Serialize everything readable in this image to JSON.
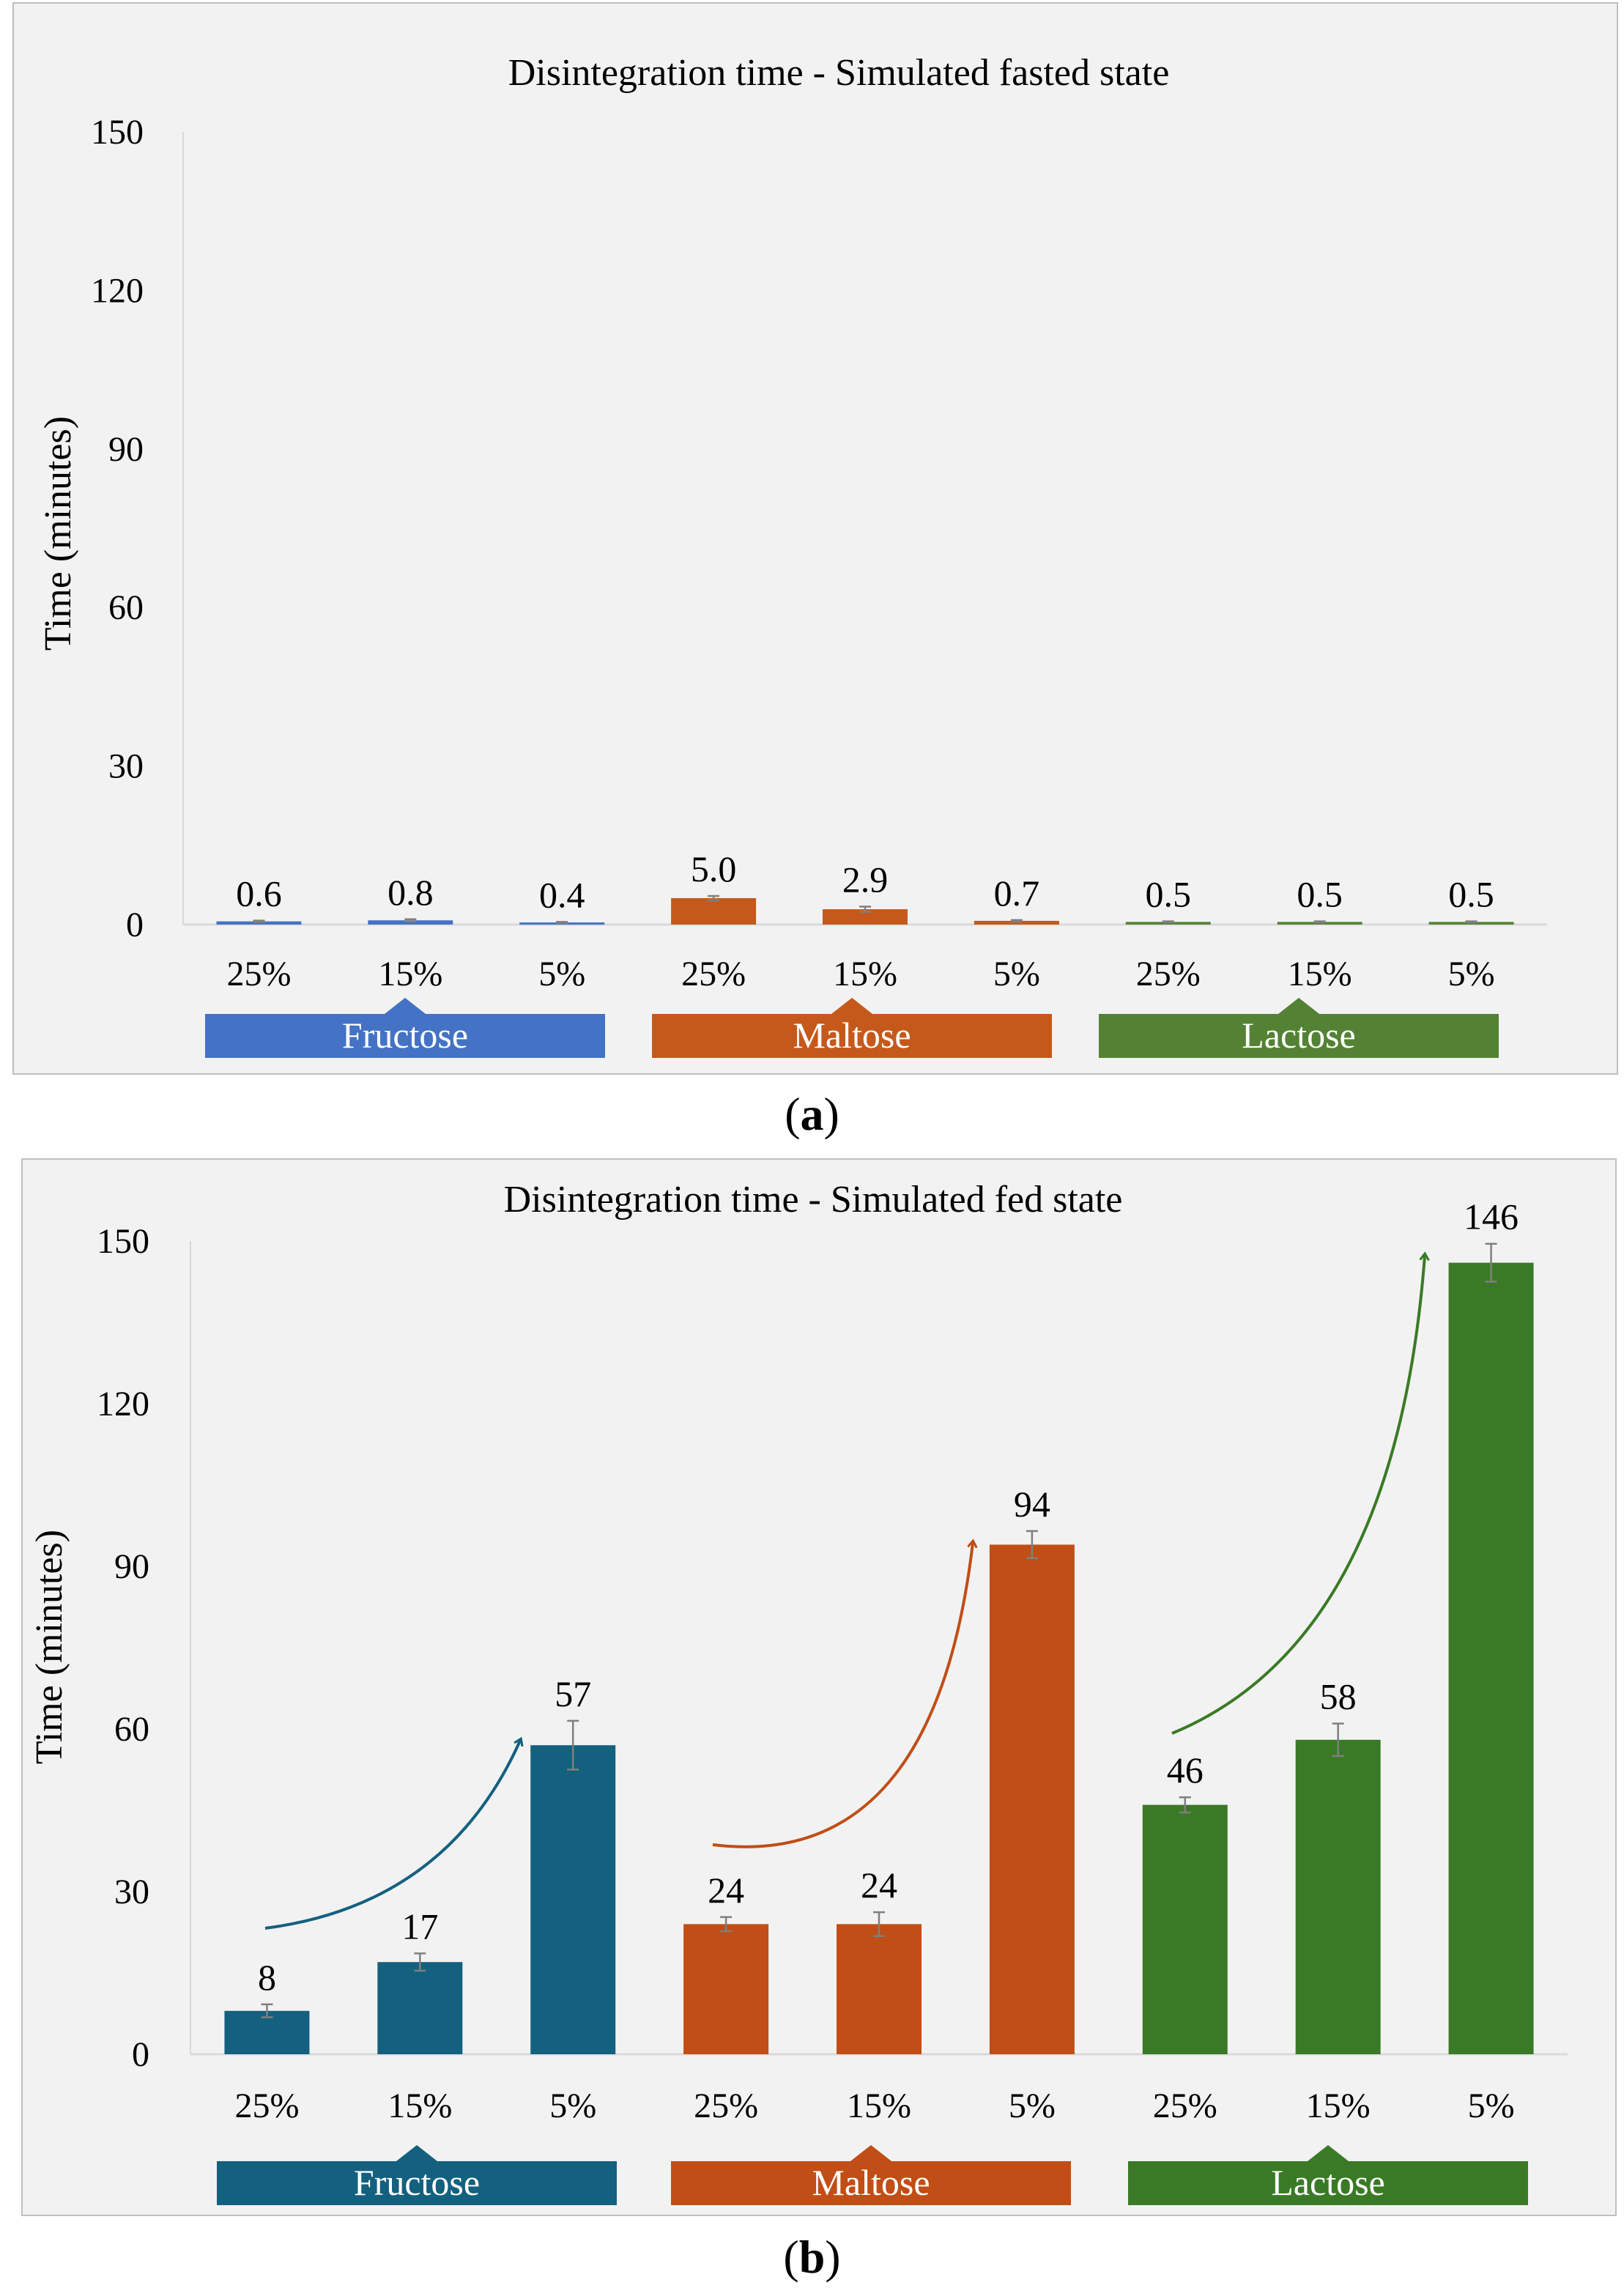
{
  "chart_data": [
    {
      "type": "bar",
      "panel": "a",
      "panel_label": "(a)",
      "title": "Disintegration time - Simulated fasted state",
      "xlabel": "",
      "ylabel": "Time (minutes)",
      "ylim": [
        0,
        150
      ],
      "yticks": [
        0,
        30,
        60,
        90,
        120,
        150
      ],
      "grid": false,
      "groups": [
        {
          "name": "Fructose",
          "color": "#4472C4",
          "categories": [
            "25%",
            "15%",
            "5%"
          ],
          "values": [
            0.6,
            0.8,
            0.4
          ],
          "labels": [
            "0.6",
            "0.8",
            "0.4"
          ],
          "errors": [
            0.15,
            0.2,
            0.1
          ]
        },
        {
          "name": "Maltose",
          "color": "#C5591B",
          "categories": [
            "25%",
            "15%",
            "5%"
          ],
          "values": [
            5.0,
            2.9,
            0.7
          ],
          "labels": [
            "5.0",
            "2.9",
            "0.7"
          ],
          "errors": [
            0.4,
            0.5,
            0.15
          ]
        },
        {
          "name": "Lactose",
          "color": "#548235",
          "categories": [
            "25%",
            "15%",
            "5%"
          ],
          "values": [
            0.5,
            0.5,
            0.5
          ],
          "labels": [
            "0.5",
            "0.5",
            "0.5"
          ],
          "errors": [
            0.1,
            0.1,
            0.1
          ]
        }
      ]
    },
    {
      "type": "bar",
      "panel": "b",
      "panel_label": "(b)",
      "title": "Disintegration time - Simulated fed state",
      "xlabel": "",
      "ylabel": "Time (minutes)",
      "ylim": [
        0,
        150
      ],
      "yticks": [
        0,
        30,
        60,
        90,
        120,
        150
      ],
      "grid": false,
      "groups": [
        {
          "name": "Fructose",
          "color": "#14607F",
          "categories": [
            "25%",
            "15%",
            "5%"
          ],
          "values": [
            8,
            17,
            57
          ],
          "labels": [
            "8",
            "17",
            "57"
          ],
          "errors": [
            1.2,
            1.6,
            4.5
          ]
        },
        {
          "name": "Maltose",
          "color": "#C04E16",
          "categories": [
            "25%",
            "15%",
            "5%"
          ],
          "values": [
            24,
            24,
            94
          ],
          "labels": [
            "24",
            "24",
            "94"
          ],
          "errors": [
            1.3,
            2.2,
            2.5
          ]
        },
        {
          "name": "Lactose",
          "color": "#3A7A26",
          "categories": [
            "25%",
            "15%",
            "5%"
          ],
          "values": [
            46,
            58,
            146
          ],
          "labels": [
            "46",
            "58",
            "146"
          ],
          "errors": [
            1.4,
            3.0,
            3.5
          ]
        }
      ]
    }
  ]
}
